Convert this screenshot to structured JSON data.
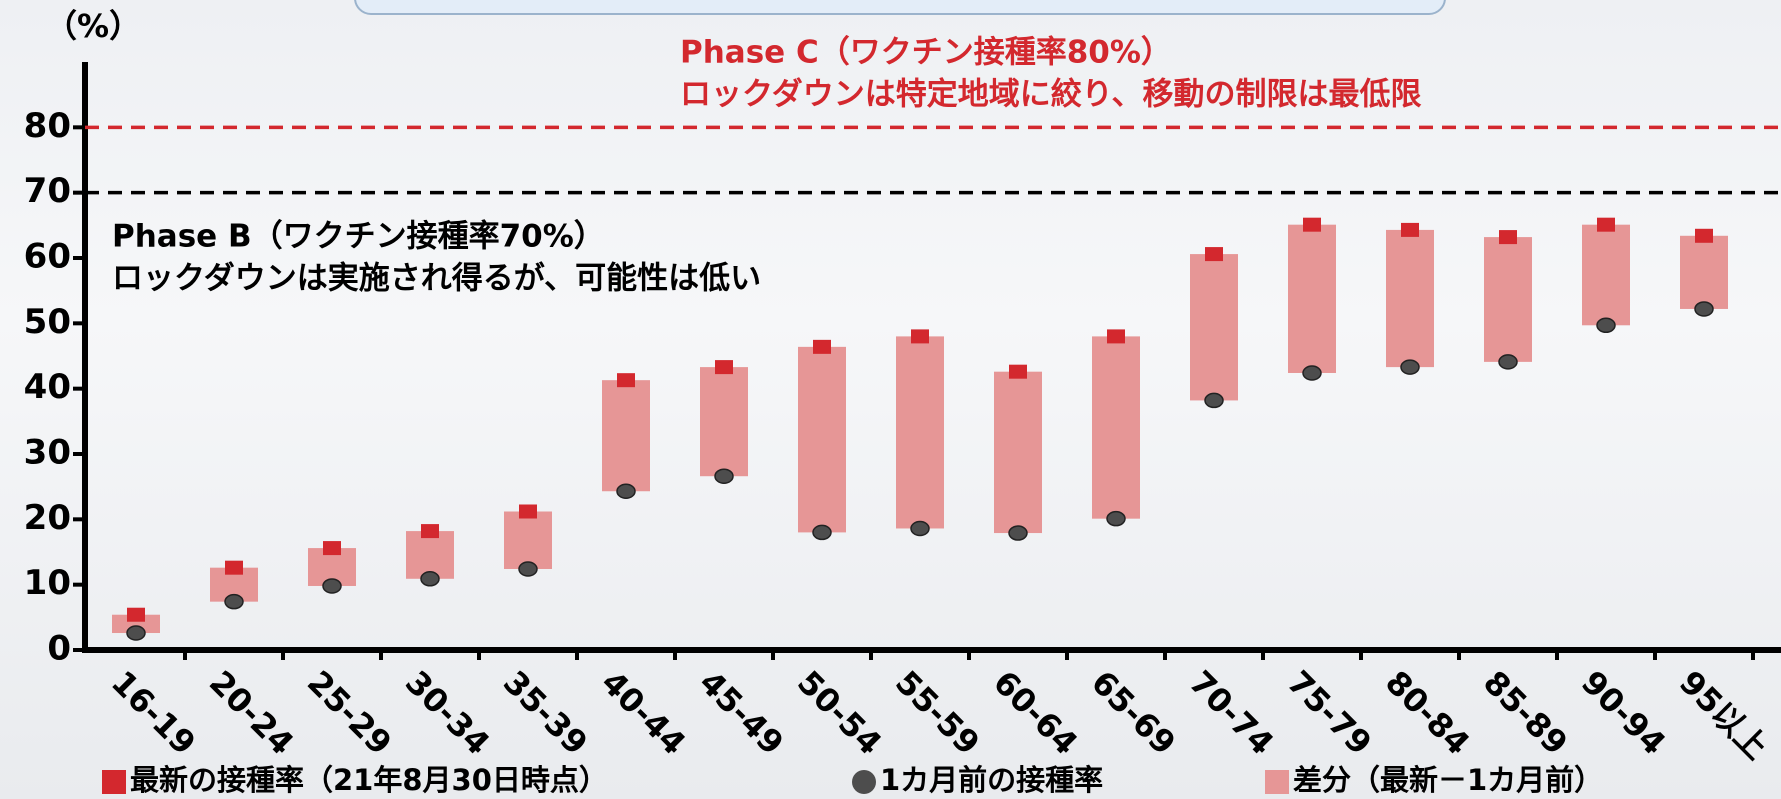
{
  "chart_data": {
    "type": "floating_bar",
    "y_label": "（%）",
    "categories": [
      "16-19",
      "20-24",
      "25-29",
      "30-34",
      "35-39",
      "40-44",
      "45-49",
      "50-54",
      "55-59",
      "60-64",
      "65-69",
      "70-74",
      "75-79",
      "80-84",
      "85-89",
      "90-94",
      "95以上"
    ],
    "series": [
      {
        "name": "最新の接種率（21年8月30日時点）",
        "color": "#d3282e",
        "marker": "square",
        "values": [
          5.4,
          12.6,
          15.6,
          18.2,
          21.2,
          41.3,
          43.3,
          46.4,
          48.0,
          42.6,
          48.0,
          60.6,
          65.1,
          64.3,
          63.2,
          65.1,
          63.4
        ]
      },
      {
        "name": "1カ月前の接種率",
        "color": "#4d4d4d",
        "marker": "circle",
        "values": [
          2.6,
          7.4,
          9.8,
          10.9,
          12.4,
          24.3,
          26.6,
          18.0,
          18.6,
          17.9,
          20.1,
          38.2,
          42.4,
          43.3,
          44.1,
          49.7,
          52.2
        ]
      },
      {
        "name": "差分（最新－1カ月前）",
        "color": "#e69696",
        "marker": "bar",
        "values": [
          2.8,
          5.2,
          5.8,
          7.3,
          8.8,
          17.0,
          16.7,
          28.4,
          29.4,
          24.7,
          27.9,
          22.4,
          22.7,
          21.0,
          19.1,
          15.4,
          11.2
        ]
      }
    ],
    "ylim": [
      0,
      90
    ],
    "yticks": [
      0,
      10,
      20,
      30,
      40,
      50,
      60,
      70,
      80
    ],
    "reference_lines": [
      {
        "value": 80,
        "color": "#d3282e",
        "lines": [
          "Phase C（ワクチン接種率80%）",
          "ロックダウンは特定地域に絞り、移動の制限は最低限"
        ]
      },
      {
        "value": 70,
        "color": "#000000",
        "lines": [
          "Phase B（ワクチン接種率70%）",
          "ロックダウンは実施され得るが、可能性は低い"
        ]
      }
    ]
  }
}
